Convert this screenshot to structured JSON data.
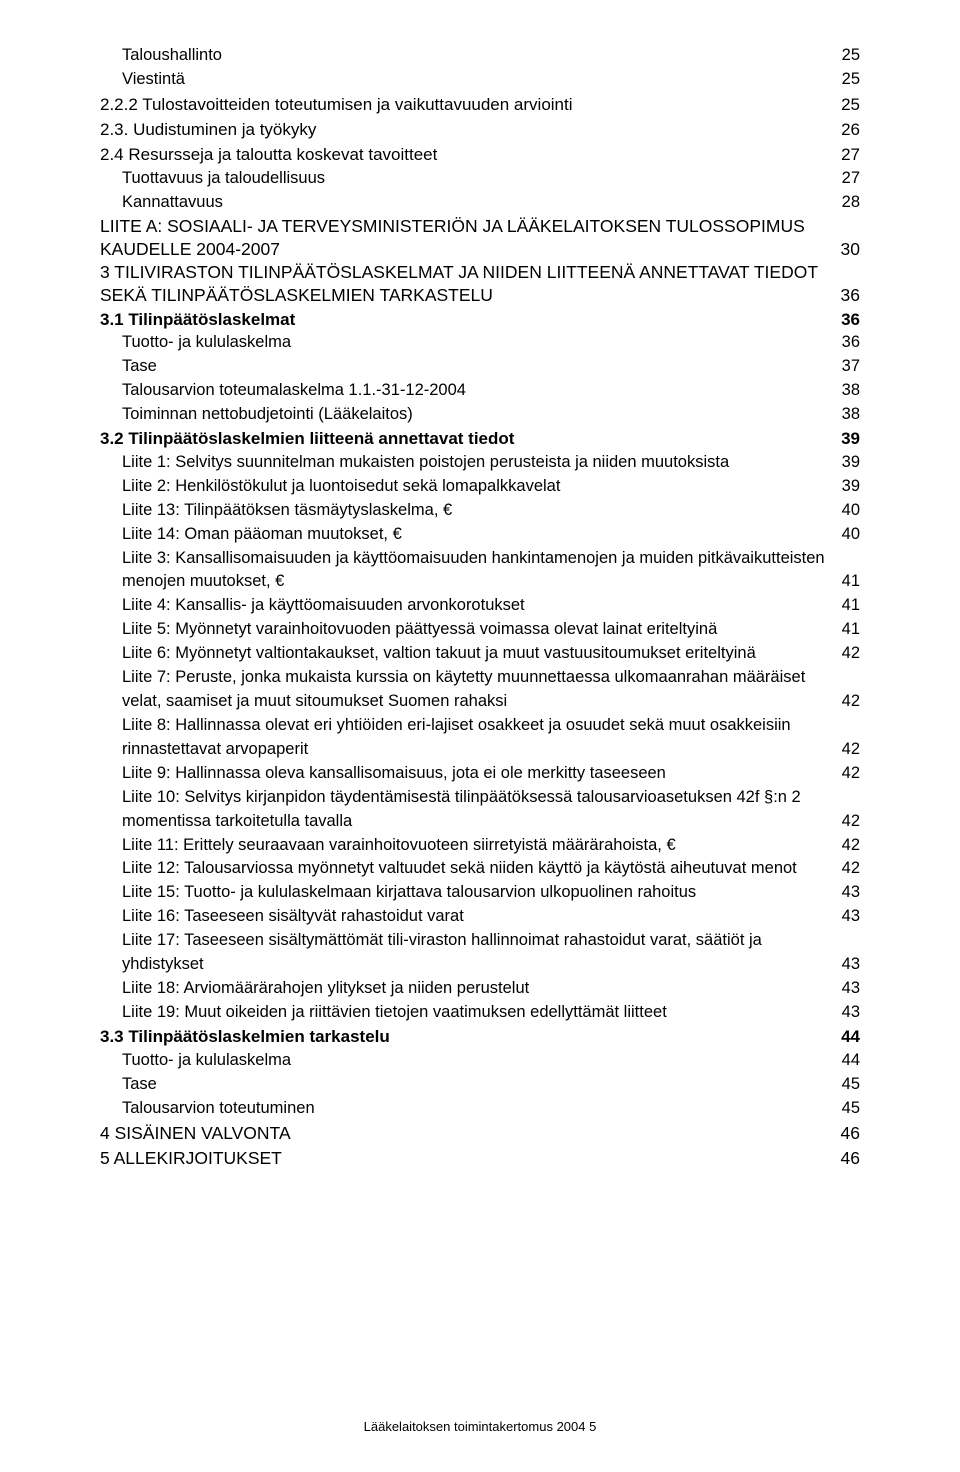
{
  "entries": [
    {
      "cls": "lvl3",
      "text": "Taloushallinto",
      "page": "25"
    },
    {
      "cls": "lvl3",
      "text": "Viestintä",
      "page": "25"
    },
    {
      "cls": "lvl2",
      "text": "2.2.2 Tulostavoitteiden toteutumisen ja vaikuttavuuden arviointi",
      "page": "25"
    },
    {
      "cls": "lvl2",
      "text": "2.3. Uudistuminen ja työkyky",
      "page": "26"
    },
    {
      "cls": "lvl2",
      "text": "2.4 Resursseja ja taloutta koskevat tavoitteet",
      "page": "27"
    },
    {
      "cls": "lvl3",
      "text": "Tuottavuus ja taloudellisuus",
      "page": "27"
    },
    {
      "cls": "lvl3",
      "text": "Kannattavuus",
      "page": "28"
    },
    {
      "cls": "lvl1-wrap",
      "text": "LIITE A: SOSIAALI- JA TERVEYSMINISTERIÖN JA LÄÄKELAITOKSEN TULOSSOPIMUS KAUDELLE 2004-2007",
      "page": "30"
    },
    {
      "cls": "lvl1-wrap",
      "text": "3 TILIVIRASTON TILINPÄÄTÖSLASKELMAT JA NIIDEN LIITTEENÄ ANNETTAVAT TIEDOT SEKÄ TILINPÄÄTÖSLASKELMIEN TARKASTELU",
      "page": "36"
    },
    {
      "cls": "lvl2b",
      "text": "3.1 Tilinpäätöslaskelmat",
      "page": "36"
    },
    {
      "cls": "lvl3",
      "text": "Tuotto- ja kululaskelma",
      "page": "36"
    },
    {
      "cls": "lvl3",
      "text": "Tase",
      "page": "37"
    },
    {
      "cls": "lvl3",
      "text": "Talousarvion toteumalaskelma 1.1.-31-12-2004",
      "page": "38"
    },
    {
      "cls": "lvl3",
      "text": "Toiminnan nettobudjetointi (Lääkelaitos)",
      "page": "38"
    },
    {
      "cls": "lvl2b",
      "text": "3.2 Tilinpäätöslaskelmien liitteenä annettavat tiedot",
      "page": "39"
    },
    {
      "cls": "lvl3",
      "text": "Liite 1: Selvitys suunnitelman mukaisten poistojen perusteista ja niiden muutoksista",
      "page": "39"
    },
    {
      "cls": "lvl3",
      "text": "Liite 2: Henkilöstökulut ja luontoisedut sekä lomapalkkavelat",
      "page": "39"
    },
    {
      "cls": "lvl3",
      "text": "Liite 13: Tilinpäätöksen täsmäytyslaskelma, €",
      "page": "40"
    },
    {
      "cls": "lvl3",
      "text": "Liite 14: Oman pääoman muutokset, €",
      "page": "40"
    },
    {
      "cls": "lvl3",
      "wrap": true,
      "text": "Liite 3: Kansallisomaisuuden ja käyttöomaisuuden hankintamenojen ja muiden pitkävaikutteisten menojen muutokset, €",
      "page": "41"
    },
    {
      "cls": "lvl3",
      "text": "Liite 4:  Kansallis- ja käyttöomaisuuden arvonkorotukset",
      "page": "41"
    },
    {
      "cls": "lvl3",
      "text": "Liite 5: Myönnetyt varainhoitovuoden päättyessä voimassa olevat lainat eriteltyinä",
      "page": "41"
    },
    {
      "cls": "lvl3",
      "text": "Liite 6: Myönnetyt valtiontakaukset, valtion takuut ja muut vastuusitoumukset eriteltyinä",
      "page": "42"
    },
    {
      "cls": "lvl3",
      "wrap": true,
      "text": "Liite 7: Peruste, jonka mukaista kurssia on käytetty muunnettaessa ulkomaanrahan määräiset velat, saamiset ja muut sitoumukset Suomen rahaksi",
      "page": "42"
    },
    {
      "cls": "lvl3",
      "wrap": true,
      "text": "Liite 8: Hallinnassa olevat eri yhtiöiden eri-lajiset osakkeet ja osuudet sekä muut osakkeisiin rinnastettavat arvopaperit",
      "page": "42"
    },
    {
      "cls": "lvl3",
      "text": "Liite 9: Hallinnassa oleva kansallisomaisuus, jota ei ole merkitty taseeseen",
      "page": "42"
    },
    {
      "cls": "lvl3",
      "wrap": true,
      "text": "Liite 10: Selvitys kirjanpidon täydentämisestä tilinpäätöksessä talousarvioasetuksen 42f §:n 2 momentissa tarkoitetulla tavalla",
      "page": "42"
    },
    {
      "cls": "lvl3",
      "text": "Liite 11: Erittely seuraavaan varainhoitovuoteen siirretyistä määrärahoista, €",
      "page": "42"
    },
    {
      "cls": "lvl3",
      "text": "Liite 12: Talousarviossa myönnetyt valtuudet sekä niiden käyttö ja käytöstä aiheutuvat menot",
      "page": "42"
    },
    {
      "cls": "lvl3",
      "text": "Liite 15: Tuotto- ja kululaskelmaan kirjattava talousarvion ulkopuolinen rahoitus",
      "page": "43"
    },
    {
      "cls": "lvl3",
      "text": "Liite 16: Taseeseen sisältyvät rahastoidut varat",
      "page": "43"
    },
    {
      "cls": "lvl3",
      "wrap": true,
      "text": "Liite 17: Taseeseen sisältymättömät tili-viraston hallinnoimat rahastoidut varat, säätiöt ja yhdistykset",
      "page": "43"
    },
    {
      "cls": "lvl3",
      "text": "Liite 18: Arviomäärärahojen ylitykset ja niiden perustelut",
      "page": "43"
    },
    {
      "cls": "lvl3",
      "text": "Liite 19: Muut oikeiden ja riittävien tietojen vaatimuksen edellyttämät liitteet",
      "page": "43"
    },
    {
      "cls": "lvl2b",
      "text": "3.3 Tilinpäätöslaskelmien tarkastelu",
      "page": "44"
    },
    {
      "cls": "lvl3",
      "text": "Tuotto- ja kululaskelma",
      "page": "44"
    },
    {
      "cls": "lvl3",
      "text": "Tase",
      "page": "45"
    },
    {
      "cls": "lvl3",
      "text": "Talousarvion toteutuminen",
      "page": "45"
    },
    {
      "cls": "lvl1",
      "text": "4 SISÄINEN VALVONTA",
      "page": "46"
    },
    {
      "cls": "lvl1",
      "text": "5 ALLEKIRJOITUKSET",
      "page": "46"
    }
  ],
  "footer": "Lääkelaitoksen toimintakertomus 2004        5"
}
